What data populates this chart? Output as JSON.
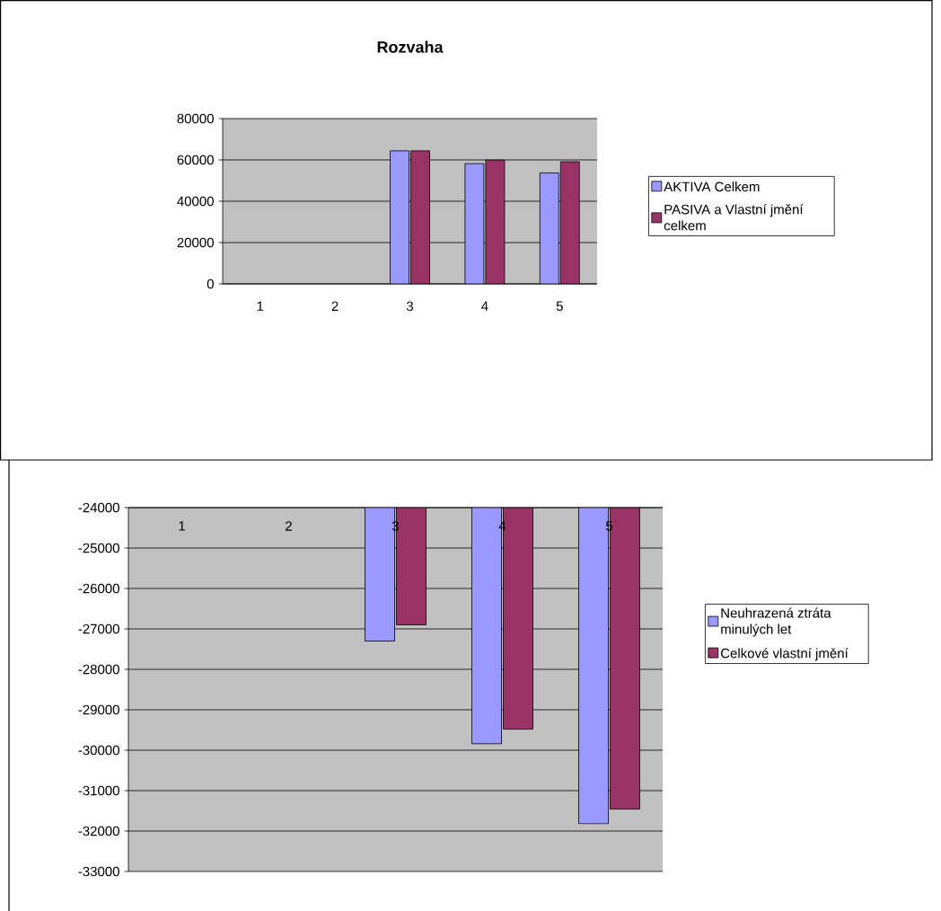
{
  "chart_data": [
    {
      "type": "bar",
      "title": "Rozvaha",
      "categories": [
        "1",
        "2",
        "3",
        "4",
        "5"
      ],
      "series": [
        {
          "name": "AKTIVA Celkem",
          "color": "#9999ff",
          "values": [
            null,
            null,
            64400,
            58200,
            53700
          ]
        },
        {
          "name": "PASIVA a Vlastní jmění celkem",
          "color": "#993366",
          "values": [
            null,
            null,
            64400,
            59900,
            59100
          ]
        }
      ],
      "ylim": [
        0,
        80000
      ],
      "yticks": [
        0,
        20000,
        40000,
        60000,
        80000
      ],
      "grid": "y",
      "legend": "right"
    },
    {
      "type": "bar",
      "categories": [
        "1",
        "2",
        "3",
        "4",
        "5"
      ],
      "series": [
        {
          "name": "Neuhrazená ztráta minulých let",
          "color": "#9999ff",
          "values": [
            null,
            null,
            -27300,
            -29840,
            -31820
          ]
        },
        {
          "name": "Celkové vlastní jmění",
          "color": "#993366",
          "values": [
            null,
            null,
            -26900,
            -29480,
            -31460
          ]
        }
      ],
      "ylim": [
        -33000,
        -24000
      ],
      "yticks": [
        -33000,
        -32000,
        -31000,
        -30000,
        -29000,
        -28000,
        -27000,
        -26000,
        -25000,
        -24000
      ],
      "grid": "y",
      "legend": "right"
    }
  ]
}
